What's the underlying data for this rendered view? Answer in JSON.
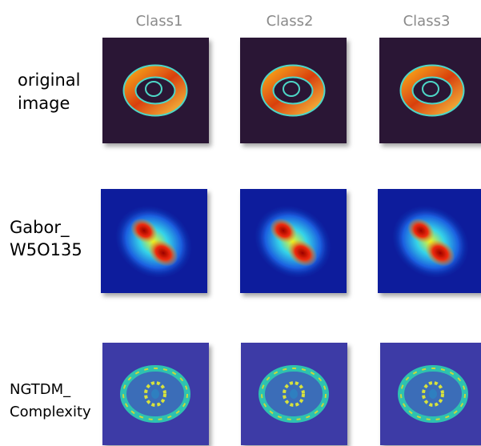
{
  "columns": [
    "Class1",
    "Class2",
    "Class3"
  ],
  "rows": [
    {
      "label": [
        "original",
        "image"
      ]
    },
    {
      "label": [
        "Gabor_",
        "W5O135"
      ]
    },
    {
      "label": [
        "NGTDM_",
        "Complexity"
      ]
    }
  ]
}
